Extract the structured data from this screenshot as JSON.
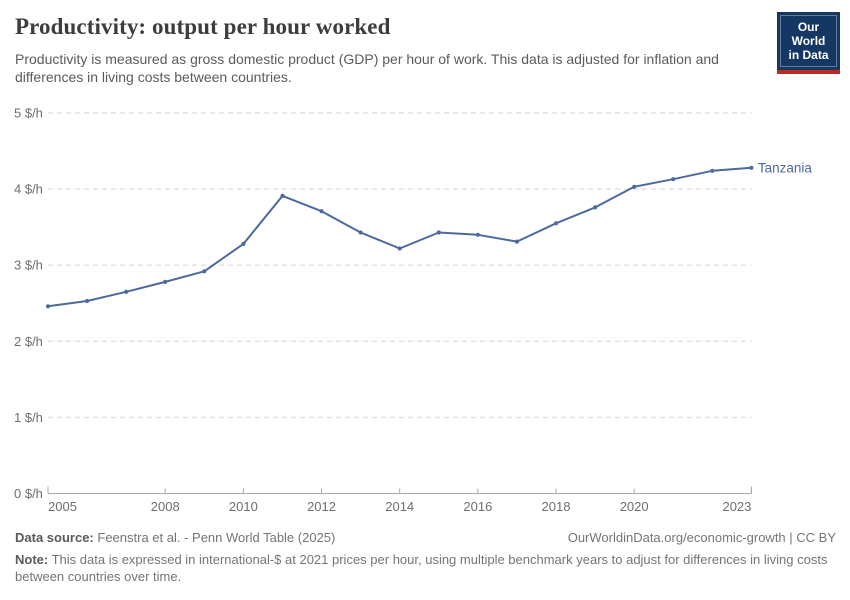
{
  "header": {
    "title": "Productivity: output per hour worked",
    "subtitle": "Productivity is measured as gross domestic product (GDP) per hour of work. This data is adjusted for inflation and differences in living costs between countries.",
    "logo": {
      "line1": "Our World",
      "line2": "in Data"
    }
  },
  "chart_data": {
    "type": "line",
    "title": "Productivity: output per hour worked",
    "xlabel": "",
    "ylabel": "$ per hour",
    "xlim": [
      2005,
      2023
    ],
    "ylim": [
      0,
      5
    ],
    "grid": "horizontal-dashed",
    "legend_position": "end-of-line-label",
    "x": [
      2005,
      2006,
      2007,
      2008,
      2009,
      2010,
      2011,
      2012,
      2013,
      2014,
      2015,
      2016,
      2017,
      2018,
      2019,
      2020,
      2021,
      2022,
      2023
    ],
    "series": [
      {
        "name": "Tanzania",
        "color": "#4c6a9c",
        "values": [
          2.46,
          2.53,
          2.65,
          2.78,
          2.92,
          3.28,
          3.91,
          3.71,
          3.43,
          3.22,
          3.43,
          3.4,
          3.31,
          3.55,
          3.76,
          4.03,
          4.13,
          4.24,
          4.28
        ]
      }
    ],
    "y_ticks": [
      {
        "v": 0,
        "label": "0 $/h"
      },
      {
        "v": 1,
        "label": "1 $/h"
      },
      {
        "v": 2,
        "label": "2 $/h"
      },
      {
        "v": 3,
        "label": "3 $/h"
      },
      {
        "v": 4,
        "label": "4 $/h"
      },
      {
        "v": 5,
        "label": "5 $/h"
      }
    ],
    "x_ticks": [
      {
        "v": 2005,
        "label": "2005"
      },
      {
        "v": 2008,
        "label": "2008"
      },
      {
        "v": 2010,
        "label": "2010"
      },
      {
        "v": 2012,
        "label": "2012"
      },
      {
        "v": 2014,
        "label": "2014"
      },
      {
        "v": 2016,
        "label": "2016"
      },
      {
        "v": 2018,
        "label": "2018"
      },
      {
        "v": 2020,
        "label": "2020"
      },
      {
        "v": 2023,
        "label": "2023"
      }
    ],
    "colors": {
      "line": "#4c6a9c",
      "grid": "#e0e0e0",
      "axis": "#a8a8a8",
      "tick_label": "#6e6e6e"
    }
  },
  "footer": {
    "source_label": "Data source:",
    "source_text": "Feenstra et al. - Penn World Table (2025)",
    "credit": "OurWorldinData.org/economic-growth | CC BY",
    "note_label": "Note:",
    "note_text": "This data is expressed in international-$ at 2021 prices per hour, using multiple benchmark years to adjust for differences in living costs between countries over time."
  }
}
